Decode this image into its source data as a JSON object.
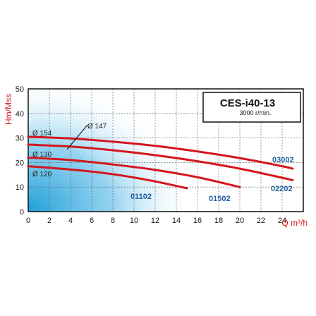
{
  "chart_data": {
    "type": "line",
    "title": "CES-i40-13",
    "subtitle": "3000 r/min.",
    "xlabel": "Q m³/h",
    "ylabel": "Hm/Mss",
    "xlim": [
      0,
      26
    ],
    "ylim": [
      0,
      50
    ],
    "xticks": [
      "0",
      "2",
      "4",
      "6",
      "8",
      "10",
      "12",
      "14",
      "16",
      "18",
      "20",
      "22",
      "24"
    ],
    "yticks": [
      "0",
      "10",
      "20",
      "30",
      "40",
      "50"
    ],
    "grid": true,
    "series": [
      {
        "name": "03002",
        "diameter": "Ø 154",
        "color": "#d4161c",
        "x": [
          0,
          4,
          8,
          12,
          16,
          20,
          24,
          25
        ],
        "y": [
          30.5,
          29.8,
          28.5,
          26.8,
          24.5,
          21.8,
          18.5,
          17.5
        ]
      },
      {
        "name": "02202",
        "diameter": "Ø 147",
        "color": "#d4161c",
        "x": [
          0,
          4,
          8,
          12,
          16,
          20,
          24,
          25
        ],
        "y": [
          27.3,
          26.5,
          25,
          23,
          20.5,
          17.5,
          13.8,
          12.8
        ]
      },
      {
        "name": "01502",
        "diameter": "Ø 130",
        "color": "#d4161c",
        "x": [
          0,
          4,
          8,
          12,
          16,
          20
        ],
        "y": [
          22,
          21,
          19.2,
          17,
          14,
          10
        ]
      },
      {
        "name": "01102",
        "diameter": "Ø 120",
        "color": "#d4161c",
        "x": [
          0,
          3,
          6,
          9,
          12,
          15
        ],
        "y": [
          18.5,
          17.5,
          16.3,
          14.6,
          12.3,
          9.5
        ]
      }
    ]
  }
}
